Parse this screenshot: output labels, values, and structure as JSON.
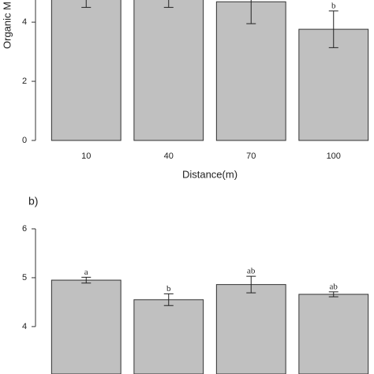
{
  "chart_data": [
    {
      "type": "bar",
      "ylabel": "Organic M",
      "xlabel": "Distance(m)",
      "categories": [
        "10",
        "40",
        "70",
        "100"
      ],
      "values": [
        5.0,
        5.0,
        4.69,
        3.76
      ],
      "errors": [
        0.5,
        0.5,
        0.74,
        0.62
      ],
      "letters": [
        null,
        null,
        null,
        "b"
      ],
      "color": "#c0c0c0",
      "ylim": [
        0,
        4.75
      ],
      "yticks": [
        0,
        2,
        4
      ]
    },
    {
      "type": "bar",
      "panel_label": "b)",
      "values": [
        4.95,
        4.55,
        4.86,
        4.66
      ],
      "errors": [
        0.06,
        0.12,
        0.17,
        0.05
      ],
      "letters": [
        "a",
        "b",
        "ab",
        "ab"
      ],
      "color": "#c0c0c0",
      "ylim": [
        3.03,
        6
      ],
      "yticks": [
        4,
        5,
        6
      ]
    }
  ]
}
